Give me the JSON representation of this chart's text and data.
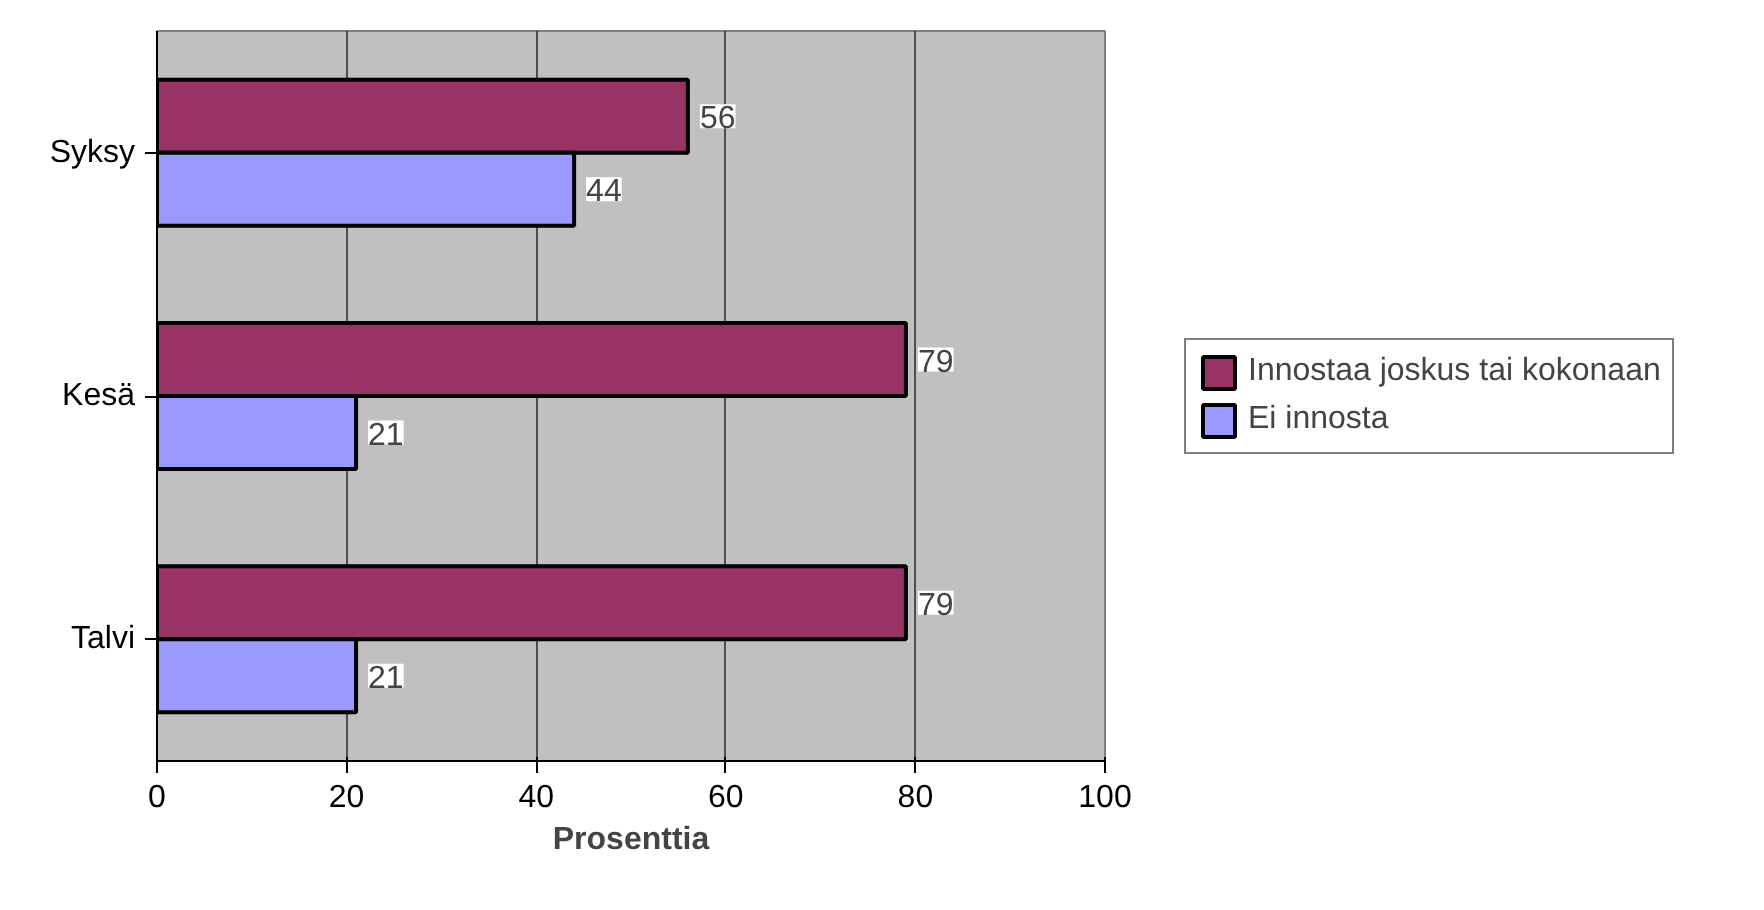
{
  "chart_data": {
    "type": "bar",
    "orientation": "horizontal",
    "categories": [
      "Syksy",
      "Kesä",
      "Talvi"
    ],
    "series": [
      {
        "name": "Innostaa joskus tai kokonaan",
        "color": "#993366",
        "values": [
          56,
          79,
          79
        ]
      },
      {
        "name": "Ei innosta",
        "color": "#9999ff",
        "values": [
          44,
          21,
          21
        ]
      }
    ],
    "xlim": [
      0,
      100
    ],
    "xticks": [
      0,
      20,
      40,
      60,
      80,
      100
    ],
    "xlabel": "Prosenttia",
    "grid": "x",
    "legend": "right",
    "data_labels": true
  }
}
